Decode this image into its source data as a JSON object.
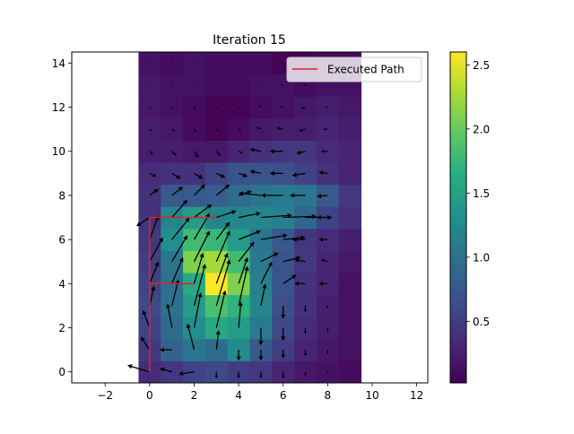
{
  "chart_data": {
    "type": "heatmap",
    "title": "Iteration 15",
    "xlabel": "",
    "ylabel": "",
    "xlim": [
      -3.5,
      12.5
    ],
    "ylim": [
      -0.5,
      14.5
    ],
    "x_ticks": [
      "−2",
      "0",
      "2",
      "4",
      "6",
      "8",
      "10",
      "12"
    ],
    "y_ticks": [
      "0",
      "2",
      "4",
      "6",
      "8",
      "10",
      "12",
      "14"
    ],
    "grid": false,
    "colormap": "viridis",
    "colorbar": {
      "range": [
        0.02,
        2.6
      ],
      "ticks": [
        "0.5",
        "1.0",
        "1.5",
        "2.0",
        "2.5"
      ]
    },
    "heatmap": {
      "x_range": [
        -0.5,
        9.5
      ],
      "y_range": [
        -0.5,
        14.5
      ],
      "rows_bottom_to_top": [
        [
          0.35,
          0.45,
          0.55,
          0.6,
          0.5,
          0.45,
          0.3,
          0.2,
          0.15,
          0.1
        ],
        [
          0.45,
          0.85,
          1.05,
          0.95,
          1.25,
          0.75,
          0.5,
          0.3,
          0.2,
          0.15
        ],
        [
          0.55,
          0.95,
          1.3,
          1.6,
          1.45,
          1.1,
          0.6,
          0.35,
          0.25,
          0.15
        ],
        [
          0.6,
          1.0,
          1.45,
          1.85,
          1.7,
          1.2,
          0.65,
          0.4,
          0.25,
          0.15
        ],
        [
          0.55,
          1.0,
          1.6,
          2.6,
          2.1,
          1.15,
          0.7,
          0.4,
          0.3,
          0.15
        ],
        [
          0.5,
          1.05,
          2.1,
          2.25,
          1.8,
          1.1,
          0.7,
          0.45,
          0.3,
          0.2
        ],
        [
          0.45,
          1.3,
          1.8,
          1.75,
          1.45,
          1.05,
          0.75,
          0.45,
          0.35,
          0.25
        ],
        [
          0.4,
          1.2,
          1.45,
          1.2,
          1.2,
          1.2,
          1.15,
          0.9,
          0.55,
          0.4
        ],
        [
          0.4,
          0.75,
          0.75,
          0.8,
          0.95,
          1.05,
          1.1,
          1.05,
          0.75,
          0.45
        ],
        [
          0.35,
          0.4,
          0.4,
          0.55,
          0.7,
          0.7,
          0.65,
          0.55,
          0.4,
          0.3
        ],
        [
          0.25,
          0.25,
          0.2,
          0.2,
          0.3,
          0.4,
          0.45,
          0.45,
          0.35,
          0.3
        ],
        [
          0.25,
          0.2,
          0.1,
          0.05,
          0.1,
          0.2,
          0.25,
          0.25,
          0.3,
          0.25
        ],
        [
          0.2,
          0.15,
          0.1,
          0.05,
          0.05,
          0.1,
          0.15,
          0.2,
          0.25,
          0.2
        ],
        [
          0.2,
          0.15,
          0.15,
          0.1,
          0.1,
          0.15,
          0.15,
          0.1,
          0.15,
          0.15
        ],
        [
          0.15,
          0.1,
          0.15,
          0.1,
          0.1,
          0.1,
          0.05,
          0.05,
          0.1,
          0.1
        ]
      ]
    },
    "vectors": [
      {
        "x": 0,
        "y": 0,
        "u": -1.0,
        "v": 0.3
      },
      {
        "x": 1,
        "y": 0,
        "u": -0.55,
        "v": 0.15
      },
      {
        "x": 2,
        "y": 0,
        "u": -0.7,
        "v": -0.1
      },
      {
        "x": 3,
        "y": 0,
        "u": 0,
        "v": -0.3
      },
      {
        "x": 4,
        "y": 0,
        "u": 0,
        "v": -0.3
      },
      {
        "x": 5,
        "y": 0,
        "u": 0,
        "v": -0.3
      },
      {
        "x": 6,
        "y": 0,
        "u": 0,
        "v": -0.3
      },
      {
        "x": 7,
        "y": 0,
        "u": 0,
        "v": -0.2
      },
      {
        "x": 8,
        "y": 0,
        "u": 0,
        "v": -0.1
      },
      {
        "x": 0,
        "y": 1,
        "u": -0.4,
        "v": 0.6
      },
      {
        "x": 1,
        "y": 1,
        "u": -0.55,
        "v": 0.0
      },
      {
        "x": 2,
        "y": 1,
        "u": -0.3,
        "v": 1.2
      },
      {
        "x": 3,
        "y": 1,
        "u": 0.1,
        "v": 0.9
      },
      {
        "x": 4,
        "y": 1,
        "u": 0,
        "v": -0.5
      },
      {
        "x": 5,
        "y": 1,
        "u": 0,
        "v": -0.5
      },
      {
        "x": 6,
        "y": 1,
        "u": 0,
        "v": -0.4
      },
      {
        "x": 7,
        "y": 1,
        "u": 0,
        "v": -0.3
      },
      {
        "x": 8,
        "y": 1,
        "u": 0,
        "v": -0.2
      },
      {
        "x": 0,
        "y": 2,
        "u": -0.3,
        "v": 0.8
      },
      {
        "x": 1,
        "y": 2,
        "u": -0.2,
        "v": 1.1
      },
      {
        "x": 2,
        "y": 2,
        "u": 0.3,
        "v": 1.6
      },
      {
        "x": 3,
        "y": 2,
        "u": 0.4,
        "v": 1.7
      },
      {
        "x": 4,
        "y": 2,
        "u": 0.1,
        "v": 1.2
      },
      {
        "x": 5,
        "y": 2,
        "u": 0,
        "v": -0.8
      },
      {
        "x": 6,
        "y": 2,
        "u": 0,
        "v": -0.6
      },
      {
        "x": 7,
        "y": 2,
        "u": 0,
        "v": -0.3
      },
      {
        "x": 8,
        "y": 2,
        "u": 0,
        "v": -0.2
      },
      {
        "x": 0,
        "y": 3,
        "u": 0.2,
        "v": 0.9
      },
      {
        "x": 1,
        "y": 3,
        "u": 0.3,
        "v": 1.2
      },
      {
        "x": 2,
        "y": 3,
        "u": 0.5,
        "v": 1.9
      },
      {
        "x": 3,
        "y": 3,
        "u": 0.6,
        "v": 2.1
      },
      {
        "x": 4,
        "y": 3,
        "u": 0.4,
        "v": 1.8
      },
      {
        "x": 5,
        "y": 3,
        "u": 0.2,
        "v": 1.0
      },
      {
        "x": 6,
        "y": 3,
        "u": 0,
        "v": -0.6
      },
      {
        "x": 7,
        "y": 3,
        "u": 0,
        "v": -0.3
      },
      {
        "x": 8,
        "y": 3,
        "u": 0,
        "v": -0.15
      },
      {
        "x": 0,
        "y": 4,
        "u": 0.4,
        "v": 1.0
      },
      {
        "x": 1,
        "y": 4,
        "u": 0.5,
        "v": 1.2
      },
      {
        "x": 2,
        "y": 4,
        "u": 0.4,
        "v": 1.4
      },
      {
        "x": 3,
        "y": 4,
        "u": 0.5,
        "v": 1.4
      },
      {
        "x": 4,
        "y": 4,
        "u": 0.4,
        "v": 1.2
      },
      {
        "x": 5,
        "y": 4,
        "u": 0.5,
        "v": 1.0
      },
      {
        "x": 6,
        "y": 4,
        "u": 0.6,
        "v": 0.4
      },
      {
        "x": 7,
        "y": 4,
        "u": -0.5,
        "v": 0.0
      },
      {
        "x": 8,
        "y": 4,
        "u": -0.4,
        "v": 0.0
      },
      {
        "x": 0,
        "y": 5,
        "u": 0.6,
        "v": 1.1
      },
      {
        "x": 1,
        "y": 5,
        "u": 0.7,
        "v": 1.2
      },
      {
        "x": 2,
        "y": 5,
        "u": 0.7,
        "v": 1.4
      },
      {
        "x": 3,
        "y": 5,
        "u": 0.6,
        "v": 1.4
      },
      {
        "x": 4,
        "y": 5,
        "u": 0.7,
        "v": 0.9
      },
      {
        "x": 5,
        "y": 5,
        "u": 0.8,
        "v": 0.4
      },
      {
        "x": 6,
        "y": 5,
        "u": 0.8,
        "v": 0.2
      },
      {
        "x": 7,
        "y": 5,
        "u": -0.5,
        "v": 0.1
      },
      {
        "x": 8,
        "y": 5,
        "u": -0.3,
        "v": 0.1
      },
      {
        "x": 0,
        "y": 6,
        "u": 0.4,
        "v": 1.1
      },
      {
        "x": 1,
        "y": 6,
        "u": 0.8,
        "v": 1.0
      },
      {
        "x": 2,
        "y": 6,
        "u": 0.7,
        "v": 1.2
      },
      {
        "x": 3,
        "y": 6,
        "u": 0.6,
        "v": 0.8
      },
      {
        "x": 4,
        "y": 6,
        "u": 1.0,
        "v": 0.4
      },
      {
        "x": 5,
        "y": 6,
        "u": 1.2,
        "v": 0.2
      },
      {
        "x": 6,
        "y": 6,
        "u": 1.0,
        "v": 0.1
      },
      {
        "x": 7,
        "y": 6,
        "u": -0.6,
        "v": 0.0
      },
      {
        "x": 8,
        "y": 6,
        "u": -0.4,
        "v": 0.0
      },
      {
        "x": 0,
        "y": 7,
        "u": -0.6,
        "v": -0.4
      },
      {
        "x": 1,
        "y": 7,
        "u": 0.7,
        "v": 0.8
      },
      {
        "x": 2,
        "y": 7,
        "u": 0.8,
        "v": 0.6
      },
      {
        "x": 3,
        "y": 7,
        "u": 0.9,
        "v": 0.3
      },
      {
        "x": 4,
        "y": 7,
        "u": 1.0,
        "v": 0.2
      },
      {
        "x": 5,
        "y": 7,
        "u": 1.4,
        "v": 0.1
      },
      {
        "x": 6,
        "y": 7,
        "u": 1.5,
        "v": 0.05
      },
      {
        "x": 7,
        "y": 7,
        "u": 1.2,
        "v": 0.0
      },
      {
        "x": 8,
        "y": 7,
        "u": -0.5,
        "v": 0.0
      },
      {
        "x": 0,
        "y": 8,
        "u": 0.4,
        "v": 0.3
      },
      {
        "x": 1,
        "y": 8,
        "u": 0.5,
        "v": 0.4
      },
      {
        "x": 2,
        "y": 8,
        "u": 0.5,
        "v": 0.5
      },
      {
        "x": 3,
        "y": 8,
        "u": 0.6,
        "v": 0.5
      },
      {
        "x": 4,
        "y": 8,
        "u": 0.6,
        "v": 0.2
      },
      {
        "x": 5,
        "y": 8,
        "u": -1.0,
        "v": 0.1
      },
      {
        "x": 6,
        "y": 8,
        "u": -1.0,
        "v": 0.0
      },
      {
        "x": 7,
        "y": 8,
        "u": -0.7,
        "v": 0.0
      },
      {
        "x": 8,
        "y": 8,
        "u": -0.5,
        "v": -0.05
      },
      {
        "x": 0,
        "y": 9,
        "u": 0.3,
        "v": -0.15
      },
      {
        "x": 1,
        "y": 9,
        "u": 0.4,
        "v": -0.25
      },
      {
        "x": 2,
        "y": 9,
        "u": 0.4,
        "v": -0.25
      },
      {
        "x": 3,
        "y": 9,
        "u": 0.4,
        "v": -0.2
      },
      {
        "x": 4,
        "y": 9,
        "u": 0.4,
        "v": -0.15
      },
      {
        "x": 5,
        "y": 9,
        "u": -0.5,
        "v": 0.1
      },
      {
        "x": 6,
        "y": 9,
        "u": -0.6,
        "v": 0.0
      },
      {
        "x": 7,
        "y": 9,
        "u": -0.6,
        "v": -0.1
      },
      {
        "x": 8,
        "y": 9,
        "u": -0.4,
        "v": 0.05
      },
      {
        "x": 0,
        "y": 10,
        "u": 0.15,
        "v": -0.15
      },
      {
        "x": 1,
        "y": 10,
        "u": 0.2,
        "v": -0.2
      },
      {
        "x": 2,
        "y": 10,
        "u": 0.2,
        "v": -0.3
      },
      {
        "x": 3,
        "y": 10,
        "u": 0.2,
        "v": -0.2
      },
      {
        "x": 4,
        "y": 10,
        "u": 0.2,
        "v": -0.1
      },
      {
        "x": 5,
        "y": 10,
        "u": -0.5,
        "v": 0.1
      },
      {
        "x": 6,
        "y": 10,
        "u": -0.6,
        "v": 0.0
      },
      {
        "x": 7,
        "y": 10,
        "u": -0.4,
        "v": -0.1
      },
      {
        "x": 8,
        "y": 10,
        "u": -0.3,
        "v": 0.0
      },
      {
        "x": 0,
        "y": 11,
        "u": 0.1,
        "v": -0.1
      },
      {
        "x": 1,
        "y": 11,
        "u": 0.15,
        "v": -0.1
      },
      {
        "x": 2,
        "y": 11,
        "u": 0.1,
        "v": -0.15
      },
      {
        "x": 3,
        "y": 11,
        "u": 0.1,
        "v": -0.1
      },
      {
        "x": 4,
        "y": 11,
        "u": 0.1,
        "v": -0.1
      },
      {
        "x": 5,
        "y": 11,
        "u": -0.2,
        "v": 0.1
      },
      {
        "x": 6,
        "y": 11,
        "u": -0.3,
        "v": 0.05
      },
      {
        "x": 7,
        "y": 11,
        "u": -0.3,
        "v": -0.1
      },
      {
        "x": 8,
        "y": 11,
        "u": -0.2,
        "v": 0.0
      },
      {
        "x": 0,
        "y": 12,
        "u": 0.05,
        "v": -0.05
      },
      {
        "x": 1,
        "y": 12,
        "u": 0.1,
        "v": -0.05
      },
      {
        "x": 2,
        "y": 12,
        "u": 0.05,
        "v": -0.1
      },
      {
        "x": 3,
        "y": 12,
        "u": 0.05,
        "v": -0.05
      },
      {
        "x": 4,
        "y": 12,
        "u": 0.05,
        "v": -0.05
      },
      {
        "x": 5,
        "y": 12,
        "u": -0.1,
        "v": 0.05
      },
      {
        "x": 6,
        "y": 12,
        "u": -0.15,
        "v": 0.0
      },
      {
        "x": 7,
        "y": 12,
        "u": -0.2,
        "v": -0.05
      },
      {
        "x": 8,
        "y": 12,
        "u": -0.1,
        "v": 0.0
      },
      {
        "x": 0,
        "y": 13,
        "u": 0.05,
        "v": 0.0
      },
      {
        "x": 1,
        "y": 13,
        "u": 0.05,
        "v": -0.05
      },
      {
        "x": 2,
        "y": 13,
        "u": 0.05,
        "v": -0.05
      },
      {
        "x": 3,
        "y": 13,
        "u": 0.05,
        "v": 0.0
      },
      {
        "x": 4,
        "y": 13,
        "u": 0.05,
        "v": 0.0
      },
      {
        "x": 5,
        "y": 13,
        "u": -0.05,
        "v": 0.0
      },
      {
        "x": 6,
        "y": 13,
        "u": -0.1,
        "v": 0.0
      },
      {
        "x": 7,
        "y": 13,
        "u": -0.1,
        "v": 0.0
      },
      {
        "x": 8,
        "y": 13,
        "u": -0.05,
        "v": 0.0
      },
      {
        "x": 0,
        "y": 14,
        "u": 0.03,
        "v": 0.0
      },
      {
        "x": 1,
        "y": 14,
        "u": 0.03,
        "v": 0.0
      },
      {
        "x": 2,
        "y": 14,
        "u": 0.03,
        "v": -0.03
      },
      {
        "x": 3,
        "y": 14,
        "u": 0.03,
        "v": 0.0
      },
      {
        "x": 4,
        "y": 14,
        "u": 0.03,
        "v": 0.0
      },
      {
        "x": 5,
        "y": 14,
        "u": -0.03,
        "v": 0.0
      },
      {
        "x": 6,
        "y": 14,
        "u": -0.05,
        "v": 0.0
      },
      {
        "x": 7,
        "y": 14,
        "u": -0.05,
        "v": 0.0
      },
      {
        "x": 8,
        "y": 14,
        "u": -0.03,
        "v": 0.0
      }
    ],
    "path": {
      "name": "Executed Path",
      "color": "#d62728",
      "points": [
        [
          0,
          0
        ],
        [
          0,
          4
        ],
        [
          2,
          4
        ],
        [
          0,
          4
        ],
        [
          0,
          7
        ],
        [
          3,
          7
        ]
      ]
    },
    "legend": {
      "placement": "top-right",
      "entries": [
        "Executed Path"
      ]
    }
  }
}
